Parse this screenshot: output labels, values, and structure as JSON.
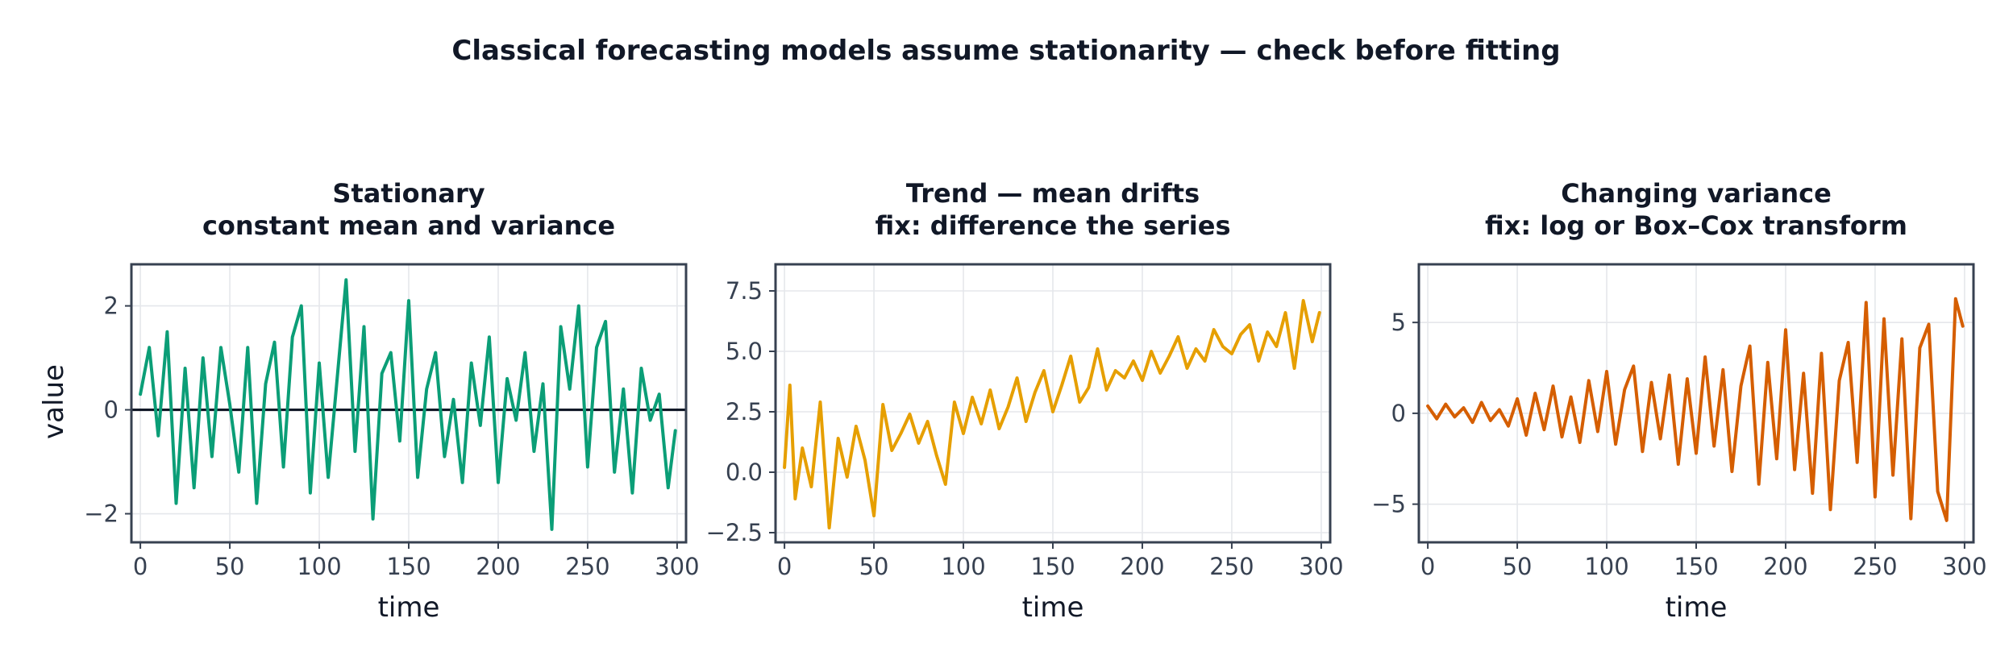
{
  "figure": {
    "suptitle": "Classical forecasting models assume stationarity — check before fitting"
  },
  "chart_data": [
    {
      "type": "line",
      "title": [
        "Stationary",
        "constant mean and variance"
      ],
      "xlabel": "time",
      "ylabel": "value",
      "xlim": [
        -5,
        305
      ],
      "ylim": [
        -2.55,
        2.8
      ],
      "xticks": [
        0,
        50,
        100,
        150,
        200,
        250,
        300
      ],
      "xtick_labels": [
        "0",
        "50",
        "100",
        "150",
        "200",
        "250",
        "300"
      ],
      "yticks": [
        -2,
        0,
        2
      ],
      "ytick_labels": [
        "−2",
        "0",
        "2"
      ],
      "reference_line": 0,
      "color": "#0b9e77",
      "x": [
        0,
        5,
        10,
        15,
        20,
        25,
        30,
        35,
        40,
        45,
        50,
        55,
        60,
        65,
        70,
        75,
        80,
        85,
        90,
        95,
        100,
        105,
        110,
        115,
        120,
        125,
        130,
        135,
        140,
        145,
        150,
        155,
        160,
        165,
        170,
        175,
        180,
        185,
        190,
        195,
        200,
        205,
        210,
        215,
        220,
        225,
        230,
        235,
        240,
        245,
        250,
        255,
        260,
        265,
        270,
        275,
        280,
        285,
        290,
        295,
        299
      ],
      "y": [
        0.3,
        1.2,
        -0.5,
        1.5,
        -1.8,
        0.8,
        -1.5,
        1.0,
        -0.9,
        1.2,
        0.1,
        -1.2,
        1.2,
        -1.8,
        0.5,
        1.3,
        -1.1,
        1.4,
        2.0,
        -1.6,
        0.9,
        -1.3,
        0.6,
        2.5,
        -0.8,
        1.6,
        -2.1,
        0.7,
        1.1,
        -0.6,
        2.1,
        -1.3,
        0.4,
        1.1,
        -0.9,
        0.2,
        -1.4,
        0.9,
        -0.3,
        1.4,
        -1.4,
        0.6,
        -0.2,
        1.1,
        -0.8,
        0.5,
        -2.3,
        1.6,
        0.4,
        2.0,
        -1.1,
        1.2,
        1.7,
        -1.2,
        0.4,
        -1.6,
        0.8,
        -0.2,
        0.3,
        -1.5,
        -0.4
      ]
    },
    {
      "type": "line",
      "title": [
        "Trend — mean drifts",
        "fix: difference the series"
      ],
      "xlabel": "time",
      "ylabel": "",
      "xlim": [
        -5,
        305
      ],
      "ylim": [
        -2.9,
        8.6
      ],
      "xticks": [
        0,
        50,
        100,
        150,
        200,
        250,
        300
      ],
      "xtick_labels": [
        "0",
        "50",
        "100",
        "150",
        "200",
        "250",
        "300"
      ],
      "yticks": [
        -2.5,
        0.0,
        2.5,
        5.0,
        7.5
      ],
      "ytick_labels": [
        "−2.5",
        "0.0",
        "2.5",
        "5.0",
        "7.5"
      ],
      "color": "#e69f00",
      "x": [
        0,
        3,
        6,
        10,
        15,
        20,
        25,
        30,
        35,
        40,
        45,
        50,
        55,
        60,
        65,
        70,
        75,
        80,
        85,
        90,
        95,
        100,
        105,
        110,
        115,
        120,
        125,
        130,
        135,
        140,
        145,
        150,
        155,
        160,
        165,
        170,
        175,
        180,
        185,
        190,
        195,
        200,
        205,
        210,
        215,
        220,
        225,
        230,
        235,
        240,
        245,
        250,
        255,
        260,
        265,
        270,
        275,
        280,
        285,
        290,
        295,
        299
      ],
      "y": [
        0.2,
        3.6,
        -1.1,
        1.0,
        -0.6,
        2.9,
        -2.3,
        1.4,
        -0.2,
        1.9,
        0.5,
        -1.8,
        2.8,
        0.9,
        1.6,
        2.4,
        1.2,
        2.1,
        0.7,
        -0.5,
        2.9,
        1.6,
        3.1,
        2.0,
        3.4,
        1.8,
        2.7,
        3.9,
        2.1,
        3.3,
        4.2,
        2.5,
        3.6,
        4.8,
        2.9,
        3.5,
        5.1,
        3.4,
        4.2,
        3.9,
        4.6,
        3.8,
        5.0,
        4.1,
        4.8,
        5.6,
        4.3,
        5.1,
        4.6,
        5.9,
        5.2,
        4.9,
        5.7,
        6.1,
        4.6,
        5.8,
        5.2,
        6.6,
        4.3,
        7.1,
        5.4,
        6.6
      ]
    },
    {
      "type": "line",
      "title": [
        "Changing variance",
        "fix: log or Box–Cox transform"
      ],
      "xlabel": "time",
      "ylabel": "",
      "xlim": [
        -5,
        305
      ],
      "ylim": [
        -7.1,
        8.2
      ],
      "xticks": [
        0,
        50,
        100,
        150,
        200,
        250,
        300
      ],
      "xtick_labels": [
        "0",
        "50",
        "100",
        "150",
        "200",
        "250",
        "300"
      ],
      "yticks": [
        -5,
        0,
        5
      ],
      "ytick_labels": [
        "−5",
        "0",
        "5"
      ],
      "color": "#d55e00",
      "x": [
        0,
        5,
        10,
        15,
        20,
        25,
        30,
        35,
        40,
        45,
        50,
        55,
        60,
        65,
        70,
        75,
        80,
        85,
        90,
        95,
        100,
        105,
        110,
        115,
        120,
        125,
        130,
        135,
        140,
        145,
        150,
        155,
        160,
        165,
        170,
        175,
        180,
        185,
        190,
        195,
        200,
        205,
        210,
        215,
        220,
        225,
        230,
        235,
        240,
        245,
        250,
        255,
        260,
        265,
        270,
        275,
        280,
        285,
        290,
        295,
        299
      ],
      "y": [
        0.4,
        -0.3,
        0.5,
        -0.2,
        0.3,
        -0.5,
        0.6,
        -0.4,
        0.2,
        -0.7,
        0.8,
        -1.2,
        1.1,
        -0.9,
        1.5,
        -1.3,
        0.9,
        -1.6,
        1.8,
        -1.0,
        2.3,
        -1.7,
        1.3,
        2.6,
        -2.1,
        1.7,
        -1.4,
        2.1,
        -2.8,
        1.9,
        -2.2,
        3.1,
        -1.8,
        2.4,
        -3.2,
        1.5,
        3.7,
        -3.9,
        2.8,
        -2.5,
        4.6,
        -3.1,
        2.2,
        -4.4,
        3.3,
        -5.3,
        1.8,
        3.9,
        -2.7,
        6.1,
        -4.6,
        5.2,
        -3.4,
        4.1,
        -5.8,
        3.6,
        4.9,
        -4.3,
        -5.9,
        6.3,
        4.8
      ]
    }
  ]
}
